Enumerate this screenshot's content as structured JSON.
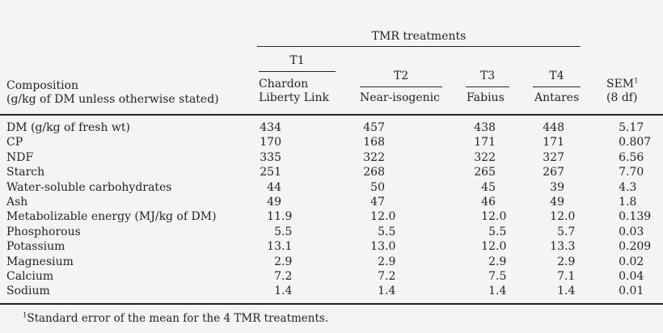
{
  "table": {
    "group_header": "TMR treatments",
    "stub_header": {
      "line1": "Composition",
      "line2": "(g/kg of DM unless otherwise stated)"
    },
    "columns": [
      {
        "label": "T1",
        "name_line1": "Chardon",
        "name_line2": "Liberty Link"
      },
      {
        "label": "T2",
        "name_line1": "Near-isogenic"
      },
      {
        "label": "T3",
        "name_line1": "Fabius"
      },
      {
        "label": "T4",
        "name_line1": "Antares"
      }
    ],
    "sem_header": {
      "abbr": "SEM",
      "superscript": "1",
      "df": "(8 df)"
    },
    "rows": [
      {
        "label": "DM (g/kg of fresh wt)",
        "values": [
          "434",
          "457",
          "438",
          "448",
          "5.17"
        ]
      },
      {
        "label": "CP",
        "values": [
          "170",
          "168",
          "171",
          "171",
          "0.807"
        ]
      },
      {
        "label": "NDF",
        "values": [
          "335",
          "322",
          "322",
          "327",
          "6.56"
        ]
      },
      {
        "label": "Starch",
        "values": [
          "251",
          "268",
          "265",
          "267",
          "7.70"
        ]
      },
      {
        "label": "Water-soluble carbohydrates",
        "values": [
          "44",
          "50",
          "45",
          "39",
          "4.3"
        ]
      },
      {
        "label": "Ash",
        "values": [
          "49",
          "47",
          "46",
          "49",
          "1.8"
        ]
      },
      {
        "label": "Metabolizable energy (MJ/kg of DM)",
        "values": [
          "11.9",
          "12.0",
          "12.0",
          "12.0",
          "0.139"
        ]
      },
      {
        "label": "Phosphorous",
        "values": [
          "5.5",
          "5.5",
          "5.5",
          "5.7",
          "0.03"
        ]
      },
      {
        "label": "Potassium",
        "values": [
          "13.1",
          "13.0",
          "12.0",
          "13.3",
          "0.209"
        ]
      },
      {
        "label": "Magnesium",
        "values": [
          "2.9",
          "2.9",
          "2.9",
          "2.9",
          "0.02"
        ]
      },
      {
        "label": "Calcium",
        "values": [
          "7.2",
          "7.2",
          "7.5",
          "7.1",
          "0.04"
        ]
      },
      {
        "label": "Sodium",
        "values": [
          "1.4",
          "1.4",
          "1.4",
          "1.4",
          "0.01"
        ]
      }
    ],
    "footnote": {
      "superscript": "1",
      "text": "Standard error of the mean for the 4 TMR treatments."
    }
  },
  "colors": {
    "background": "#f4f4f4",
    "text": "#222222",
    "rule": "#262626"
  }
}
